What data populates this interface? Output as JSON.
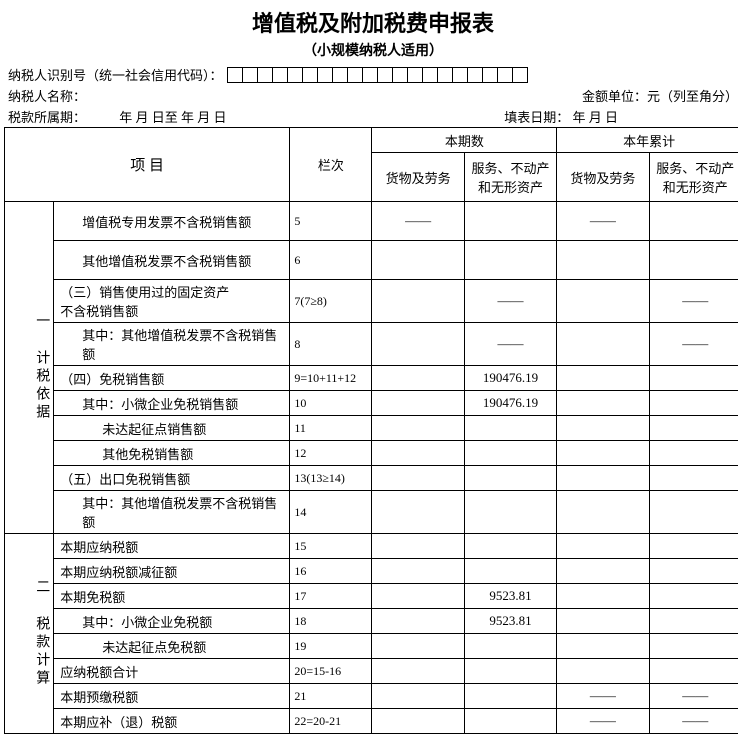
{
  "title": "增值税及附加税费申报表",
  "subtitle": "（小规模纳税人适用）",
  "header": {
    "id_label": "纳税人识别号（统一社会信用代码）：",
    "id_box_count": 20,
    "name_label": "纳税人名称：",
    "unit_label": "金额单位：元（列至角分）",
    "period_label": "税款所属期：",
    "period_text": "年 月 日至        年 月 日",
    "fill_date_label": "填表日期：",
    "fill_date_text": "年 月 日"
  },
  "columns": {
    "item": "项 目",
    "lan": "栏次",
    "this_period": "本期数",
    "year_total": "本年累计",
    "goods": "货物及劳务",
    "services": "服务、不动产和无形资产"
  },
  "sections": {
    "s1": "一 计税依据",
    "s2": "二 税款计算"
  },
  "rows": [
    {
      "sec": "s1",
      "item": "增值税专用发票不含税销售额",
      "cls": "indent1",
      "lan": "5",
      "v": [
        "——",
        "",
        "——",
        ""
      ],
      "tall": true
    },
    {
      "sec": "s1",
      "item": "其他增值税发票不含税销售额",
      "cls": "indent1",
      "lan": "6",
      "v": [
        "",
        "",
        "",
        ""
      ],
      "tall": true
    },
    {
      "sec": "s1",
      "item": "（三）销售使用过的固定资产\n不含税销售额",
      "cls": "",
      "lan": "7(7≥8)",
      "v": [
        "",
        "——",
        "",
        "——"
      ],
      "tall": true
    },
    {
      "sec": "s1",
      "item": "其中：其他增值税发票不含税销售额",
      "cls": "indent1",
      "lan": "8",
      "v": [
        "",
        "——",
        "",
        "——"
      ],
      "tall": true
    },
    {
      "sec": "s1",
      "item": "（四）免税销售额",
      "cls": "",
      "lan": "9=10+11+12",
      "v": [
        "",
        "190476.19",
        "",
        ""
      ]
    },
    {
      "sec": "s1",
      "item": "其中：小微企业免税销售额",
      "cls": "indent1",
      "lan": "10",
      "v": [
        "",
        "190476.19",
        "",
        ""
      ]
    },
    {
      "sec": "s1",
      "item": "未达起征点销售额",
      "cls": "indent2",
      "lan": "11",
      "v": [
        "",
        "",
        "",
        ""
      ]
    },
    {
      "sec": "s1",
      "item": "其他免税销售额",
      "cls": "indent2",
      "lan": "12",
      "v": [
        "",
        "",
        "",
        ""
      ]
    },
    {
      "sec": "s1",
      "item": "（五）出口免税销售额",
      "cls": "",
      "lan": "13(13≥14)",
      "v": [
        "",
        "",
        "",
        ""
      ]
    },
    {
      "sec": "s1",
      "item": "其中：其他增值税发票不含税销售额",
      "cls": "indent1",
      "lan": "14",
      "v": [
        "",
        "",
        "",
        ""
      ],
      "tall": true
    },
    {
      "sec": "s2",
      "item": "本期应纳税额",
      "cls": "",
      "lan": "15",
      "v": [
        "",
        "",
        "",
        ""
      ]
    },
    {
      "sec": "s2",
      "item": "本期应纳税额减征额",
      "cls": "",
      "lan": "16",
      "v": [
        "",
        "",
        "",
        ""
      ]
    },
    {
      "sec": "s2",
      "item": "本期免税额",
      "cls": "",
      "lan": "17",
      "v": [
        "",
        "9523.81",
        "",
        ""
      ]
    },
    {
      "sec": "s2",
      "item": "其中：小微企业免税额",
      "cls": "indent1",
      "lan": "18",
      "v": [
        "",
        "9523.81",
        "",
        ""
      ]
    },
    {
      "sec": "s2",
      "item": "未达起征点免税额",
      "cls": "indent2",
      "lan": "19",
      "v": [
        "",
        "",
        "",
        ""
      ]
    },
    {
      "sec": "s2",
      "item": "应纳税额合计",
      "cls": "",
      "lan": "20=15-16",
      "v": [
        "",
        "",
        "",
        ""
      ]
    },
    {
      "sec": "s2",
      "item": "本期预缴税额",
      "cls": "",
      "lan": "21",
      "v": [
        "",
        "",
        "——",
        "——"
      ]
    },
    {
      "sec": "s2",
      "item": "本期应补（退）税额",
      "cls": "",
      "lan": "22=20-21",
      "v": [
        "",
        "",
        "——",
        "——"
      ]
    }
  ]
}
